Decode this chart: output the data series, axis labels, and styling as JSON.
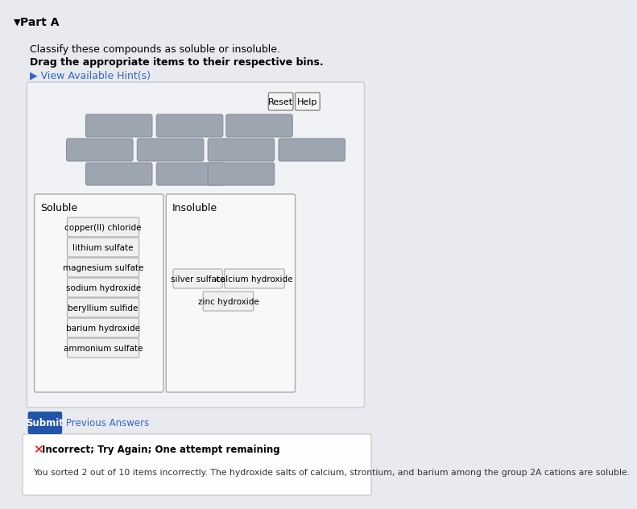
{
  "title": "Part A",
  "instruction1": "Classify these compounds as soluble or insoluble.",
  "instruction2": "Drag the appropriate items to their respective bins.",
  "hint_text": "View Available Hint(s)",
  "bg_color": "#e8eaf0",
  "soluble_items": [
    "copper(II) chloride",
    "lithium sulfate",
    "magnesium sulfate",
    "sodium hydroxide",
    "beryllium sulfide",
    "barium hydroxide",
    "ammonium sulfate"
  ],
  "insoluble_items": [
    "silver sulfate",
    "calcium hydroxide",
    "zinc hydroxide"
  ],
  "reset_label": "Reset",
  "help_label": "Help",
  "submit_label": "Submit",
  "prev_label": "Previous Answers",
  "error_title": "Incorrect; Try Again; One attempt remaining",
  "error_body": "You sorted 2 out of 10 items incorrectly. The hydroxide salts of calcium, strontium, and barium among the group 2A cations are soluble."
}
